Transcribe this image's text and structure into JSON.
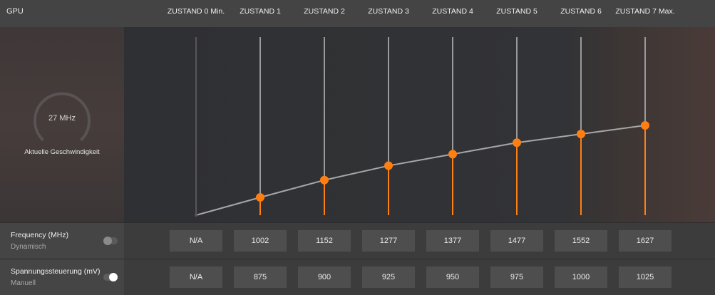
{
  "header": {
    "title": "GPU",
    "states": [
      "ZUSTAND 0 Min.",
      "ZUSTAND 1",
      "ZUSTAND 2",
      "ZUSTAND 3",
      "ZUSTAND 4",
      "ZUSTAND 5",
      "ZUSTAND 6",
      "ZUSTAND 7 Max."
    ]
  },
  "gauge": {
    "value": "27 MHz",
    "caption": "Aktuelle Geschwindigkeit"
  },
  "frequency_row": {
    "title": "Frequency (MHz)",
    "mode": "Dynamisch",
    "toggle_on": false,
    "values": [
      "N/A",
      "1002",
      "1152",
      "1277",
      "1377",
      "1477",
      "1552",
      "1627"
    ]
  },
  "voltage_row": {
    "title": "Spannungssteuerung (mV)",
    "mode": "Manuell",
    "toggle_on": true,
    "values": [
      "N/A",
      "875",
      "900",
      "925",
      "950",
      "975",
      "1000",
      "1025"
    ]
  },
  "colors": {
    "accent": "#ff7f12",
    "curve": "#a7a7a7",
    "track": "#9a9a9a"
  }
}
